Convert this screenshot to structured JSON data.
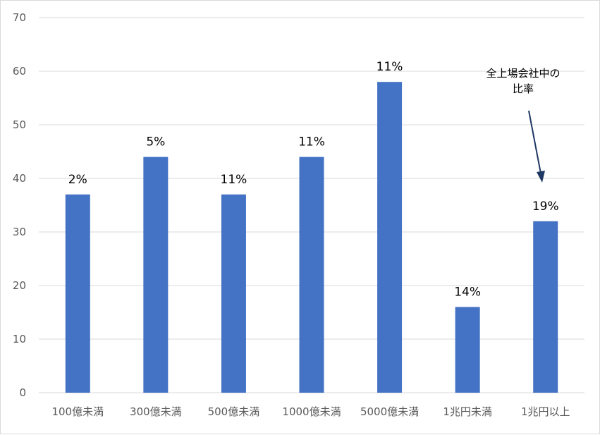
{
  "chart_data": {
    "type": "bar",
    "categories": [
      "100億未満",
      "300億未満",
      "500億未満",
      "1000億未満",
      "5000億未満",
      "1兆円未満",
      "1兆円以上"
    ],
    "values": [
      37,
      44,
      37,
      44,
      58,
      16,
      32
    ],
    "data_labels": [
      "2%",
      "5%",
      "11%",
      "11%",
      "11%",
      "14%",
      "19%"
    ],
    "ylim": [
      0,
      70
    ],
    "yticks": [
      0,
      10,
      20,
      30,
      40,
      50,
      60,
      70
    ],
    "grid": true,
    "legend": "none",
    "colors": {
      "bar": "#4472C4",
      "grid": "#d9d9d9",
      "arrow": "#1f3864"
    },
    "annotation": {
      "lines": [
        "全上場会社中の",
        "比率"
      ],
      "target_category": "1兆円以上"
    }
  }
}
